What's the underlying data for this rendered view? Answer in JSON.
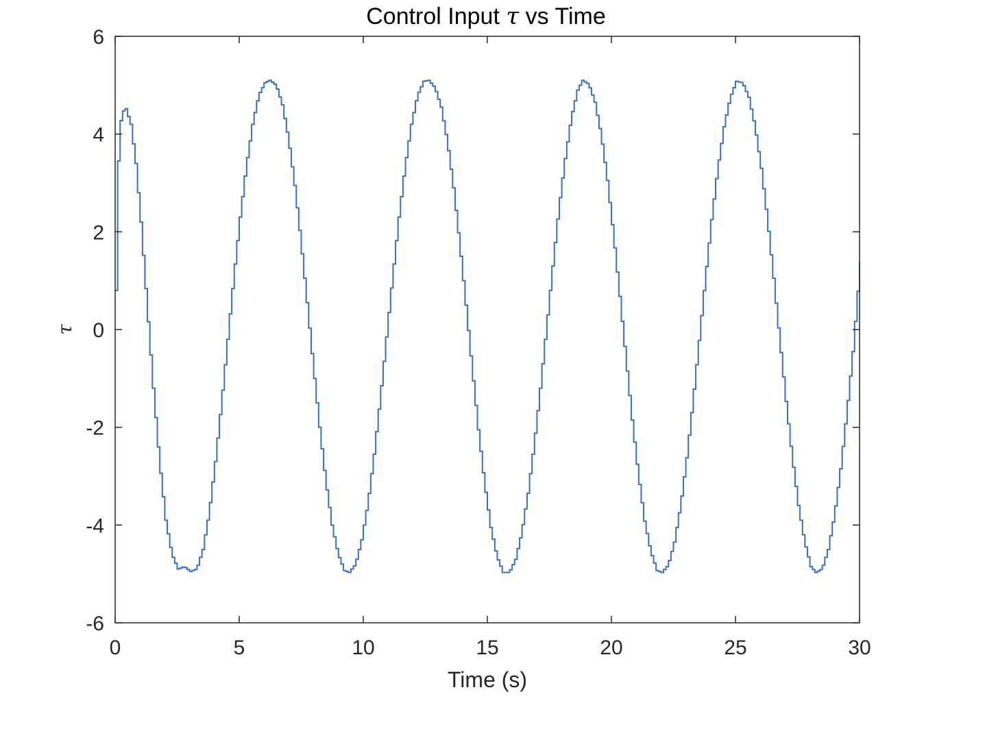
{
  "chart_data": {
    "type": "line",
    "title_prefix": "Control Input ",
    "title_symbol": "τ",
    "title_suffix": " vs Time",
    "xlabel": "Time (s)",
    "ylabel": "τ",
    "xlim": [
      0,
      30
    ],
    "ylim": [
      -6,
      6
    ],
    "xticks": [
      0,
      5,
      10,
      15,
      20,
      25,
      30
    ],
    "yticks": [
      -6,
      -4,
      -2,
      0,
      2,
      4,
      6
    ],
    "xtick_labels": [
      "0",
      "5",
      "10",
      "15",
      "20",
      "25",
      "30"
    ],
    "ytick_labels": [
      "-6",
      "-4",
      "-2",
      "0",
      "2",
      "4",
      "6"
    ],
    "grid": false,
    "series": [
      {
        "color": "#3a6fbf",
        "step": 0.1,
        "x": [
          0.0,
          0.05,
          0.15,
          0.25,
          0.4,
          0.6,
          0.8,
          1.0,
          1.25,
          1.5,
          1.75,
          2.0,
          2.25,
          2.5,
          2.75,
          3.0,
          3.25,
          3.5,
          3.75,
          4.0,
          4.25,
          4.5,
          4.75,
          5.0,
          5.25,
          5.5,
          5.75,
          6.0,
          6.2,
          6.45,
          6.7,
          6.95,
          7.2,
          7.45,
          7.7,
          7.95,
          8.2,
          8.45,
          8.7,
          8.95,
          9.2,
          9.4,
          9.65,
          9.9,
          10.15,
          10.4,
          10.65,
          10.9,
          11.15,
          11.4,
          11.65,
          11.9,
          12.15,
          12.4,
          12.6,
          12.85,
          13.1,
          13.35,
          13.6,
          13.85,
          14.1,
          14.35,
          14.6,
          14.85,
          15.1,
          15.35,
          15.6,
          15.85,
          16.1,
          16.35,
          16.6,
          16.85,
          17.1,
          17.35,
          17.6,
          17.85,
          18.1,
          18.35,
          18.6,
          18.8,
          19.05,
          19.3,
          19.55,
          19.8,
          20.05,
          20.3,
          20.55,
          20.8,
          21.05,
          21.3,
          21.55,
          21.8,
          22.0,
          22.25,
          22.5,
          22.75,
          23.0,
          23.25,
          23.5,
          23.75,
          24.0,
          24.25,
          24.5,
          24.75,
          25.0,
          25.25,
          25.5,
          25.75,
          26.0,
          26.25,
          26.5,
          26.75,
          27.0,
          27.25,
          27.5,
          27.75,
          28.0,
          28.2,
          28.45,
          28.7,
          28.95,
          29.2,
          29.45,
          29.7,
          30.0
        ],
        "y": [
          0.8,
          2.8,
          4.1,
          4.45,
          4.52,
          4.2,
          3.4,
          2.2,
          0.5,
          -1.2,
          -2.7,
          -3.9,
          -4.6,
          -4.9,
          -4.85,
          -4.95,
          -4.9,
          -4.5,
          -3.75,
          -2.7,
          -1.5,
          -0.2,
          1.1,
          2.3,
          3.35,
          4.2,
          4.8,
          5.05,
          5.1,
          5.0,
          4.6,
          3.9,
          2.95,
          1.8,
          0.55,
          -0.75,
          -2.0,
          -3.1,
          -4.0,
          -4.6,
          -4.93,
          -4.97,
          -4.8,
          -4.3,
          -3.55,
          -2.55,
          -1.4,
          -0.15,
          1.1,
          2.3,
          3.35,
          4.2,
          4.8,
          5.08,
          5.1,
          4.95,
          4.55,
          3.85,
          2.9,
          1.75,
          0.5,
          -0.8,
          -2.05,
          -3.15,
          -4.05,
          -4.65,
          -4.97,
          -4.97,
          -4.7,
          -4.15,
          -3.35,
          -2.35,
          -1.2,
          0.05,
          1.3,
          2.5,
          3.5,
          4.35,
          4.9,
          5.1,
          5.02,
          4.65,
          3.98,
          3.05,
          1.92,
          0.68,
          -0.6,
          -1.85,
          -2.98,
          -3.92,
          -4.55,
          -4.93,
          -4.97,
          -4.82,
          -4.35,
          -3.6,
          -2.62,
          -1.47,
          -0.22,
          1.05,
          2.25,
          3.3,
          4.15,
          4.75,
          5.08,
          5.05,
          4.75,
          4.15,
          3.3,
          2.25,
          1.05,
          -0.22,
          -1.47,
          -2.62,
          -3.6,
          -4.35,
          -4.85,
          -4.97,
          -4.9,
          -4.5,
          -3.8,
          -2.85,
          -1.7,
          -0.45,
          1.4
        ]
      }
    ]
  }
}
